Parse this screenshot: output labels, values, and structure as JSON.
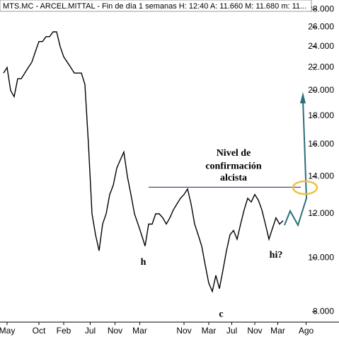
{
  "chart_data": {
    "type": "line",
    "title": "MTS.MC - ARCEL.MITTAL - Fin de día 1 semanas H: 12:40 A: 11.660 M: 11.680 m: 11...",
    "x": [
      0,
      2,
      4,
      6,
      8,
      10,
      12,
      14,
      16,
      18,
      20,
      22,
      24,
      26,
      28,
      30,
      32,
      34,
      36,
      38,
      40,
      42,
      44,
      46,
      48,
      50,
      52,
      54,
      56,
      58,
      60,
      62,
      64,
      66,
      68,
      70,
      72,
      74,
      76,
      78,
      80,
      82,
      84,
      86,
      88,
      90,
      92,
      94,
      96,
      98,
      100,
      102,
      104,
      106,
      108,
      110,
      112,
      114,
      116,
      118,
      120,
      122,
      124,
      126,
      128,
      130,
      132,
      134,
      136,
      138,
      140,
      142,
      144,
      146,
      148,
      150,
      152,
      154,
      156,
      158
    ],
    "series": [
      {
        "color": "#000000",
        "values": [
          21.5,
          22,
          20,
          19.5,
          21,
          21,
          21.5,
          22,
          22.5,
          23.5,
          24.5,
          24.5,
          25,
          25,
          25.5,
          25.5,
          24,
          23,
          22.5,
          22,
          21.5,
          21.5,
          21.5,
          20.5,
          16,
          12,
          11,
          10.3,
          11.5,
          12,
          13,
          13.5,
          14.5,
          15,
          15.5,
          14,
          13,
          12,
          11.5,
          11,
          10.5,
          11.5,
          11.5,
          12,
          12,
          11.8,
          11.5,
          11.8,
          12.2,
          12.5,
          12.8,
          13,
          13.3,
          12.5,
          11.5,
          11,
          10.5,
          9.7,
          9,
          8.7,
          9.3,
          8.8,
          9.5,
          10.3,
          11,
          11.2,
          10.8,
          11.5,
          12.2,
          12.8,
          12.6,
          13,
          12.7,
          12.2,
          11.5,
          10.8,
          11.3,
          11.8,
          11.5,
          11.66
        ]
      }
    ],
    "xlim": [
      0,
      176
    ],
    "xticks": [
      {
        "value": 2,
        "label": "May"
      },
      {
        "value": 20,
        "label": "Oct"
      },
      {
        "value": 34,
        "label": "Feb"
      },
      {
        "value": 49,
        "label": "Jul"
      },
      {
        "value": 63,
        "label": "Nov"
      },
      {
        "value": 77,
        "label": "Mar"
      },
      {
        "value": 102,
        "label": "Nov"
      },
      {
        "value": 116,
        "label": "Mar"
      },
      {
        "value": 129,
        "label": "Jul"
      },
      {
        "value": 142,
        "label": "Nov"
      },
      {
        "value": 155,
        "label": "Mar"
      },
      {
        "value": 171,
        "label": "Ago"
      }
    ],
    "ylim": [
      7.66,
      29.1
    ],
    "yticks": [
      {
        "value": 8,
        "label": "8.000"
      },
      {
        "value": 10,
        "label": "10.000"
      },
      {
        "value": 12,
        "label": "12.000"
      },
      {
        "value": 14,
        "label": "14.000"
      },
      {
        "value": 16,
        "label": "16.000"
      },
      {
        "value": 18,
        "label": "18.000"
      },
      {
        "value": 20,
        "label": "20.000"
      },
      {
        "value": 22,
        "label": "22.000"
      },
      {
        "value": 24,
        "label": "24.000"
      },
      {
        "value": 26,
        "label": "26.000"
      },
      {
        "value": 28,
        "label": "28.000"
      }
    ],
    "log_scale": true,
    "reference_line": {
      "value": 13.4,
      "color": "#1a2a5a"
    },
    "annotations": [
      {
        "text": "Nivel de",
        "x": 130,
        "y": 15.4
      },
      {
        "text": "confirmación",
        "x": 130,
        "y": 14.6
      },
      {
        "text": "alcista",
        "x": 130,
        "y": 13.9
      },
      {
        "text": "h",
        "x": 79,
        "y": 9.8
      },
      {
        "text": "c",
        "x": 123,
        "y": 7.9
      },
      {
        "text": "hi?",
        "x": 154,
        "y": 10.1
      }
    ]
  }
}
